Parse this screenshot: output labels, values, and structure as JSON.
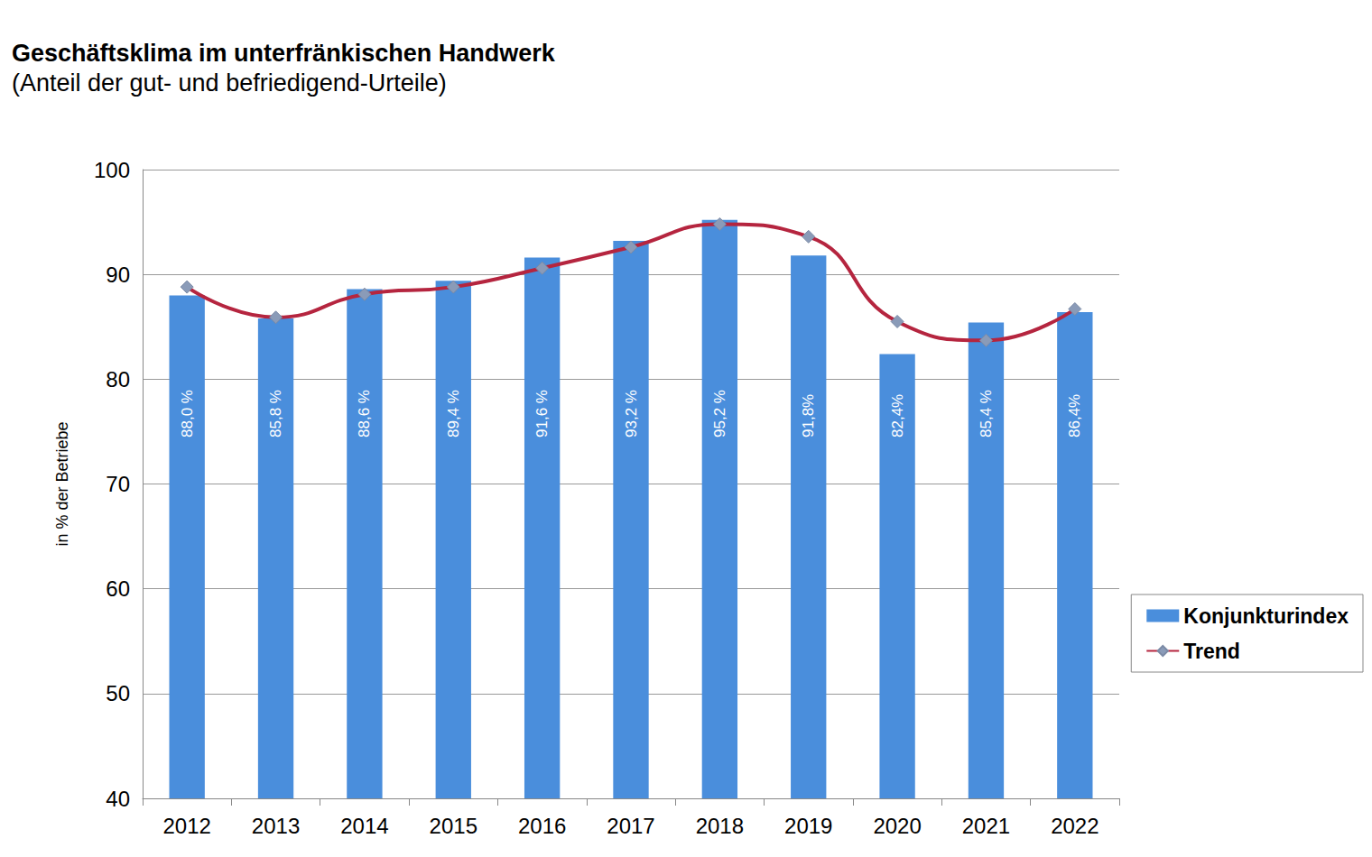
{
  "chart_data": {
    "type": "bar",
    "title": "Geschäftsklima im unterfränkischen Handwerk",
    "subtitle": "(Anteil der gut- und befriedigend-Urteile)",
    "y_label": "in % der Betriebe",
    "categories": [
      "2012",
      "2013",
      "2014",
      "2015",
      "2016",
      "2017",
      "2018",
      "2019",
      "2020",
      "2021",
      "2022"
    ],
    "series": [
      {
        "name": "Konjunkturindex",
        "type": "bar",
        "color": "#4a8edc",
        "values": [
          88.0,
          85.8,
          88.6,
          89.4,
          91.6,
          93.2,
          95.2,
          91.8,
          82.4,
          85.4,
          86.4
        ],
        "value_labels": [
          "88,0 %",
          "85,8 %",
          "88,6 %",
          "89,4 %",
          "91,6 %",
          "93,2 %",
          "95,2 %",
          "91,8%",
          "82,4%",
          "85,4 %",
          "86,4%"
        ],
        "data_labels": true
      },
      {
        "name": "Trend",
        "type": "line",
        "color": "#b5253f",
        "marker": "diamond",
        "line_style": "smooth",
        "values": [
          88.8,
          85.9,
          88.1,
          88.8,
          90.6,
          92.6,
          94.8,
          93.6,
          85.5,
          83.7,
          86.7
        ]
      }
    ],
    "ylim": [
      40,
      100
    ],
    "yticks": [
      40,
      50,
      60,
      70,
      80,
      90,
      100
    ],
    "grid": true,
    "legend": "bottom-right"
  }
}
